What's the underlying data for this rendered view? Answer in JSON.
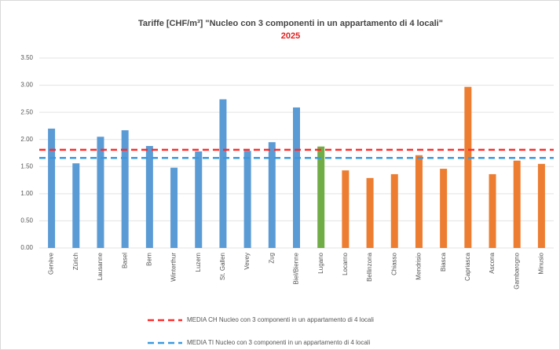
{
  "chart_data": {
    "type": "bar",
    "title": "Tariffe [CHF/m³] \"Nucleo con 3 componenti in un appartamento di 4 locali\"",
    "subtitle": "2025",
    "categories": [
      "Genève",
      "Zürich",
      "Lausanne",
      "Basel",
      "Bern",
      "Winterthur",
      "Luzern",
      "St. Gallen",
      "Vevey",
      "Zug",
      "Biel/Bienne",
      "Lugano",
      "Locarno",
      "Bellinzona",
      "Chiasso",
      "Mendrisio",
      "Biasca",
      "Capriasca",
      "Ascona",
      "Gambarogno",
      "Minusio"
    ],
    "values": [
      2.2,
      1.56,
      2.05,
      2.17,
      1.88,
      1.48,
      1.78,
      2.74,
      1.79,
      1.95,
      2.59,
      1.87,
      1.43,
      1.29,
      1.36,
      1.71,
      1.46,
      2.97,
      1.36,
      1.61,
      1.55
    ],
    "colors": [
      "#5b9bd5",
      "#5b9bd5",
      "#5b9bd5",
      "#5b9bd5",
      "#5b9bd5",
      "#5b9bd5",
      "#5b9bd5",
      "#5b9bd5",
      "#5b9bd5",
      "#5b9bd5",
      "#5b9bd5",
      "#70ad47",
      "#ed7d31",
      "#ed7d31",
      "#ed7d31",
      "#ed7d31",
      "#ed7d31",
      "#ed7d31",
      "#ed7d31",
      "#ed7d31",
      "#ed7d31"
    ],
    "reference_lines": [
      {
        "name": "MEDIA CH Nucleo con 3 componenti in un appartamento di 4 locali",
        "value": 1.81,
        "color": "#ff2a2a"
      },
      {
        "name": "MEDIA TI Nucleo con 3 componenti in un appartamento di 4 locali",
        "value": 1.66,
        "color": "#3a9ae0"
      }
    ],
    "ylim": [
      0,
      3.5
    ],
    "yticks": [
      {
        "value": 0,
        "label": "0.00"
      },
      {
        "value": 0.5,
        "label": "0.50"
      },
      {
        "value": 1,
        "label": "1.00"
      },
      {
        "value": 1.5,
        "label": "1.50"
      },
      {
        "value": 2,
        "label": "2.00"
      },
      {
        "value": 2.5,
        "label": "2.50"
      },
      {
        "value": 3,
        "label": "3.00"
      },
      {
        "value": 3.5,
        "label": "3.50"
      }
    ],
    "grid": true
  }
}
